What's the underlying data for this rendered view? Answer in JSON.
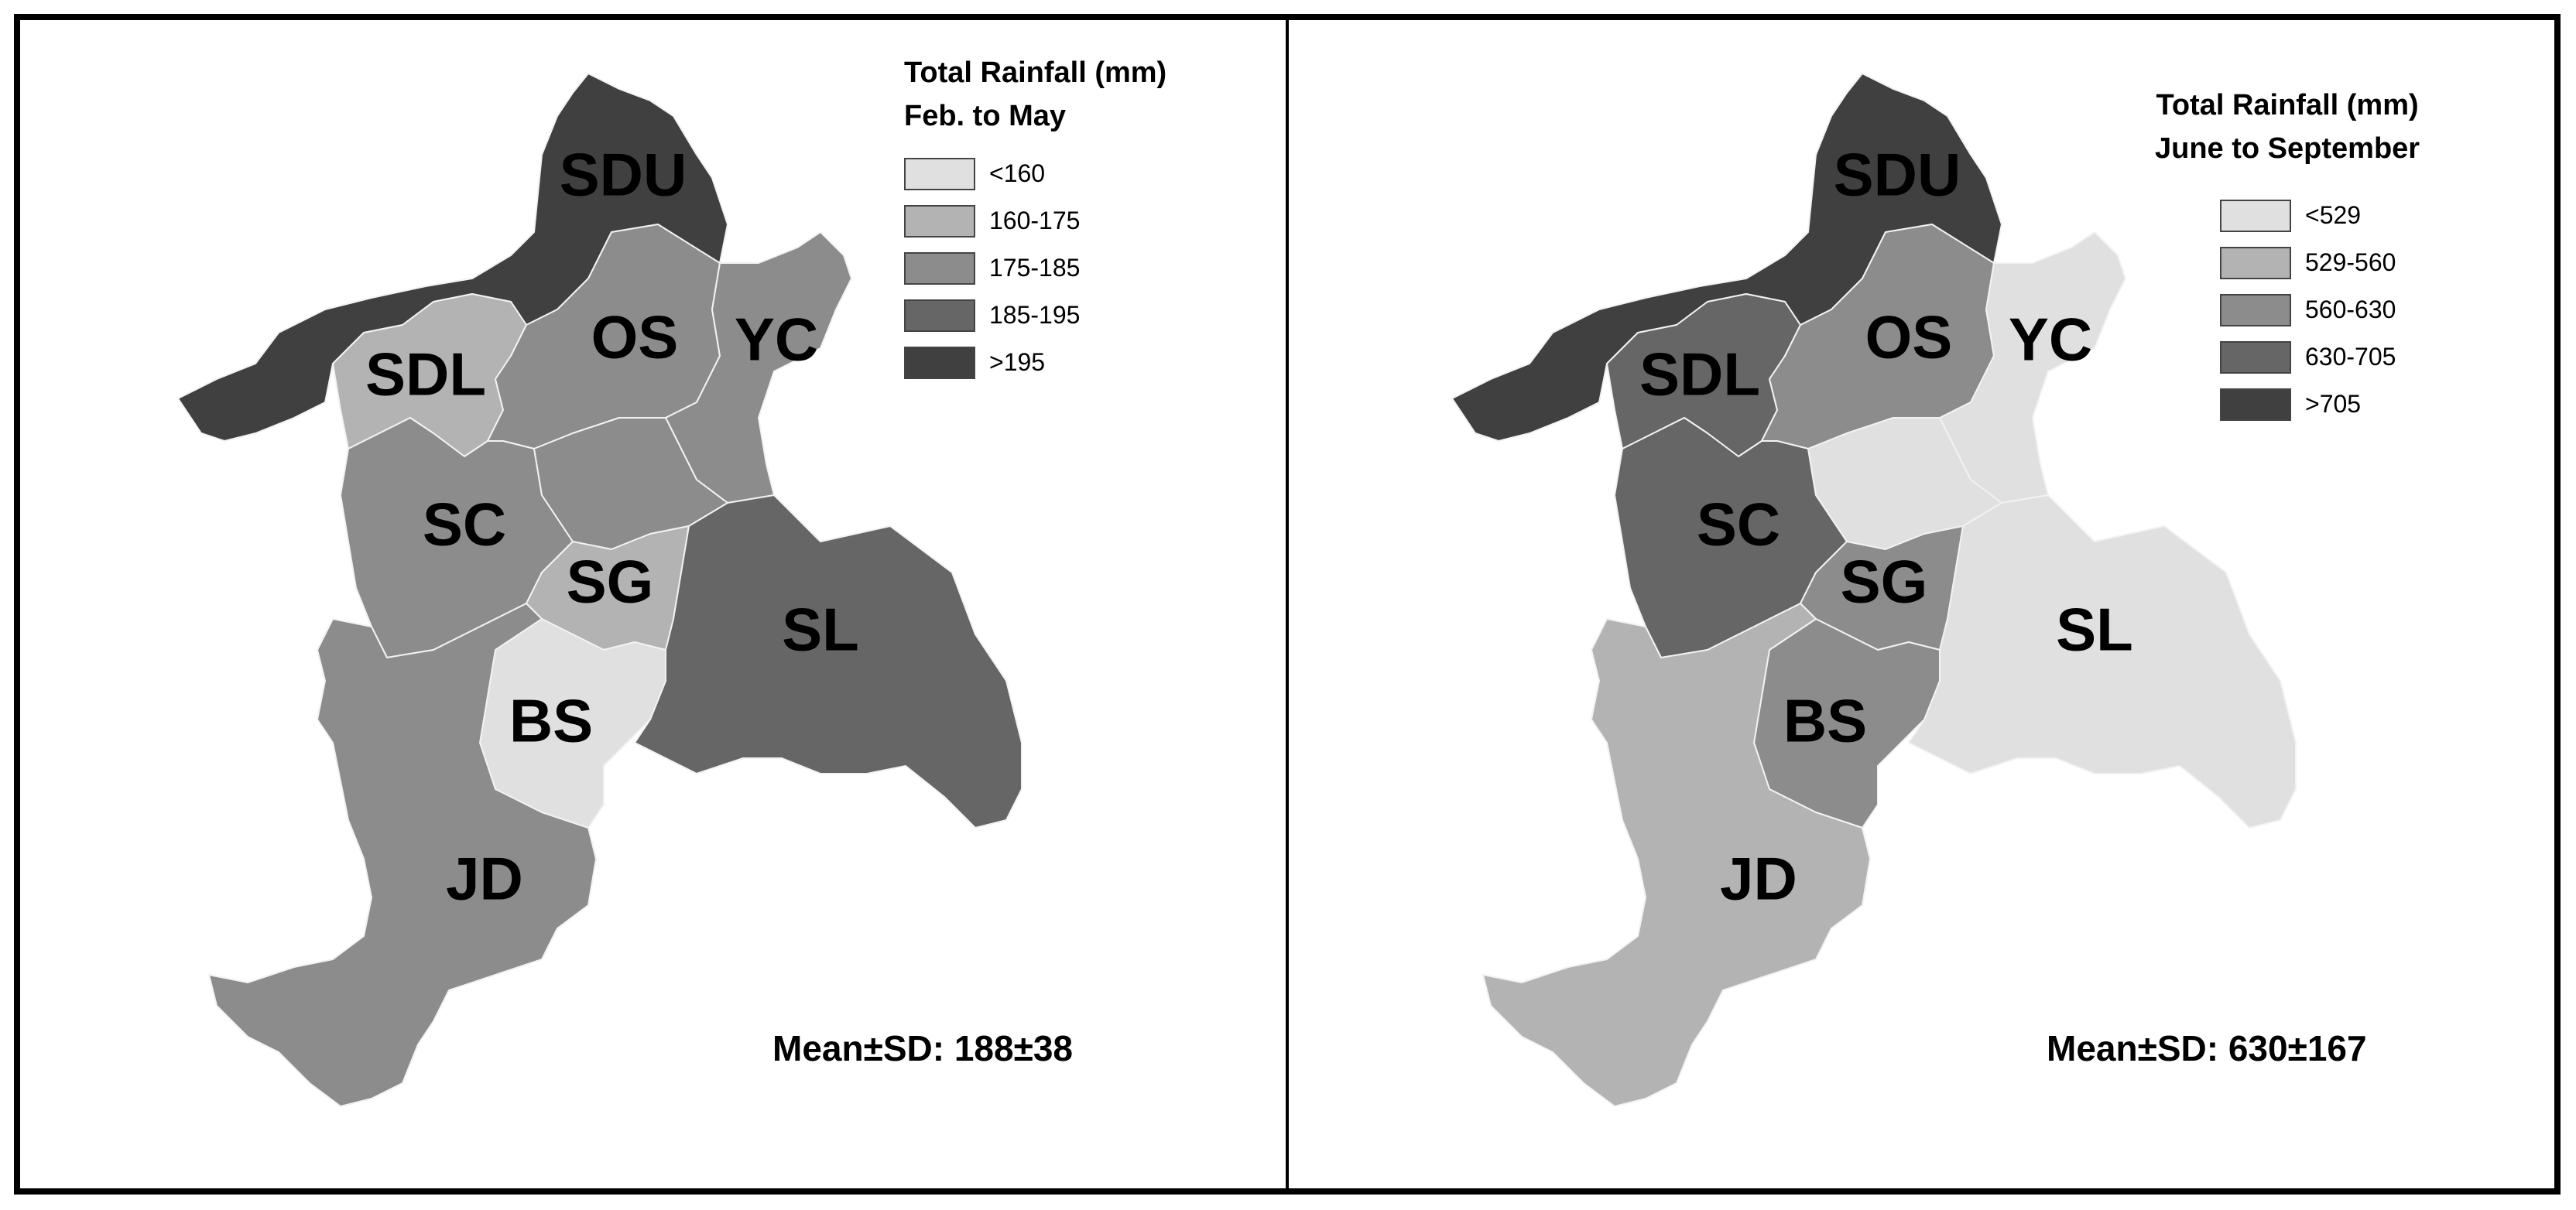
{
  "maps": [
    {
      "legend_title_line1": "Total Rainfall  (mm)",
      "legend_title_line2": "Feb. to May",
      "legend": [
        {
          "label": "<160",
          "color": "#e0e0e0"
        },
        {
          "label": "160-175",
          "color": "#b3b3b3"
        },
        {
          "label": "175-185",
          "color": "#8c8c8c"
        },
        {
          "label": "185-195",
          "color": "#666666"
        },
        {
          "label": ">195",
          "color": "#404040"
        }
      ],
      "regions": [
        {
          "code": "SDU",
          "class": 5
        },
        {
          "code": "SDL",
          "class": 2
        },
        {
          "code": "OS",
          "class": 3
        },
        {
          "code": "YC",
          "class": 3
        },
        {
          "code": "SC",
          "class": 3
        },
        {
          "code": "SG",
          "class": 2
        },
        {
          "code": "SL",
          "class": 4
        },
        {
          "code": "BS",
          "class": 1
        },
        {
          "code": "JD",
          "class": 3
        },
        {
          "code": "",
          "class": 3
        }
      ],
      "stat": "Mean±SD: 188±38"
    },
    {
      "legend_title_line1": "Total Rainfall  (mm)",
      "legend_title_line2": "June to September",
      "legend": [
        {
          "label": "<529",
          "color": "#e0e0e0"
        },
        {
          "label": "529-560",
          "color": "#b3b3b3"
        },
        {
          "label": "560-630",
          "color": "#8c8c8c"
        },
        {
          "label": "630-705",
          "color": "#666666"
        },
        {
          "label": ">705",
          "color": "#404040"
        }
      ],
      "regions": [
        {
          "code": "SDU",
          "class": 5
        },
        {
          "code": "SDL",
          "class": 4
        },
        {
          "code": "OS",
          "class": 3
        },
        {
          "code": "YC",
          "class": 1
        },
        {
          "code": "SC",
          "class": 4
        },
        {
          "code": "SG",
          "class": 3
        },
        {
          "code": "SL",
          "class": 1
        },
        {
          "code": "BS",
          "class": 3
        },
        {
          "code": "JD",
          "class": 2
        },
        {
          "code": "",
          "class": 1
        }
      ],
      "stat": "Mean±SD: 630±167"
    }
  ]
}
